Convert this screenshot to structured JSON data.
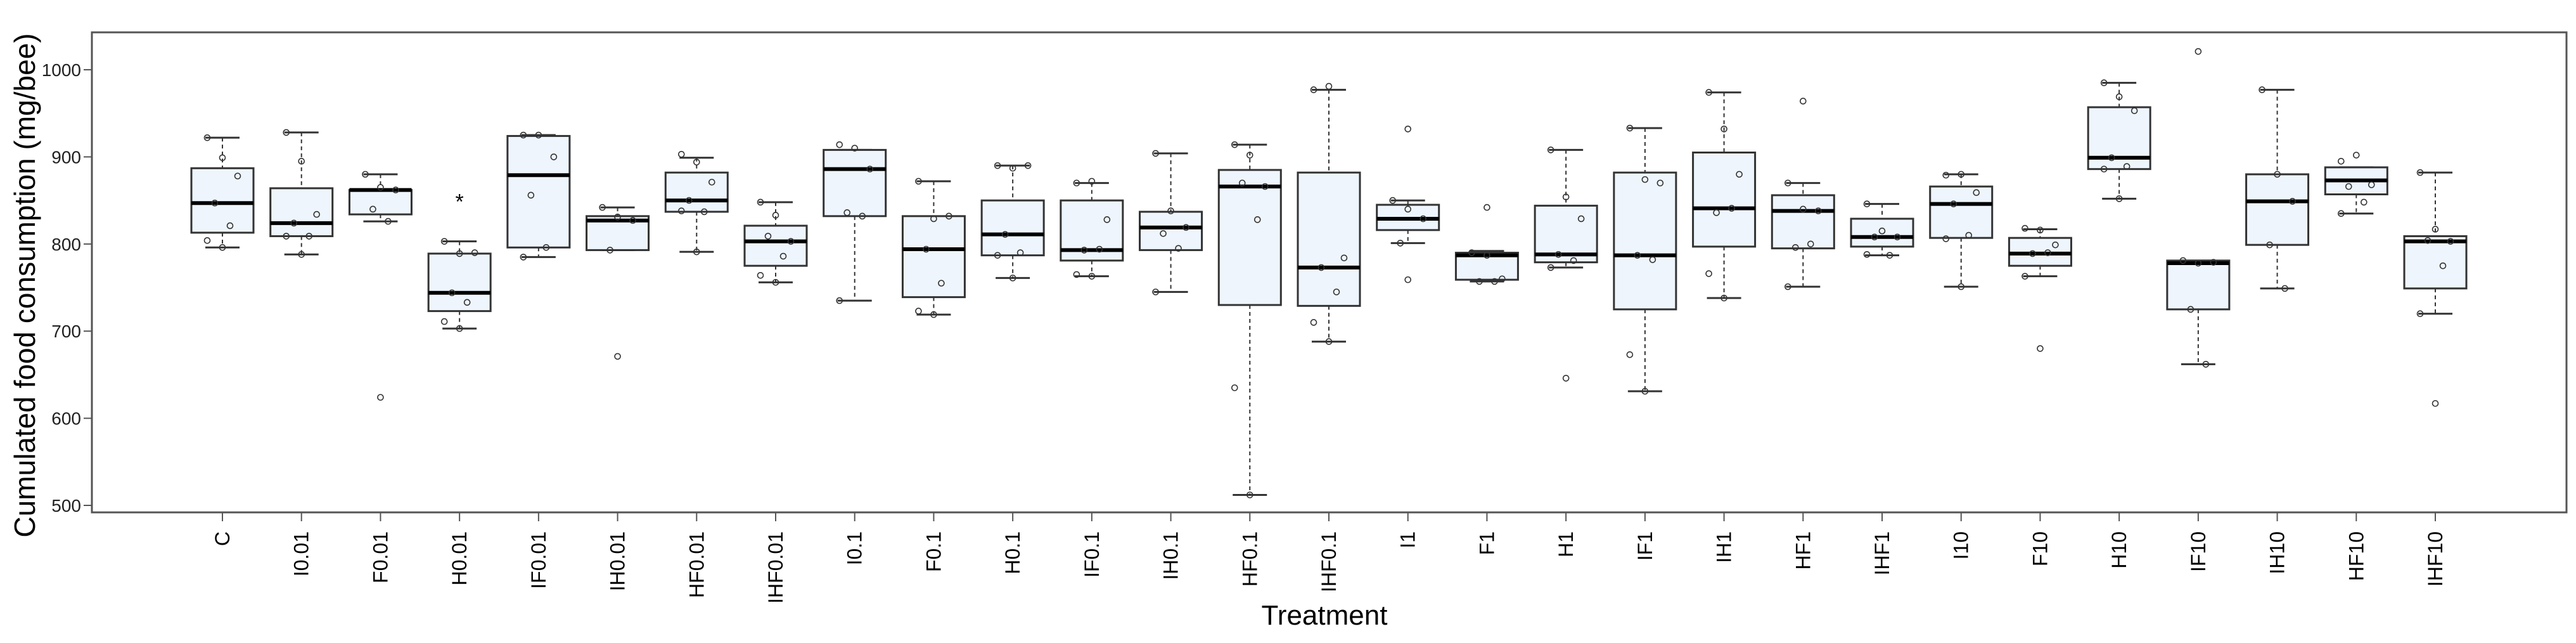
{
  "chart_data": {
    "type": "box",
    "xlabel": "Treatment",
    "ylabel": "Cumulated food consumption (mg/bee)",
    "ylim": [
      490,
      1040
    ],
    "yticks": [
      500,
      600,
      700,
      800,
      900,
      1000
    ],
    "grid": false,
    "box_fill": "#eef5fd",
    "categories": [
      "C",
      "I0.01",
      "F0.01",
      "H0.01",
      "IF0.01",
      "IH0.01",
      "HF0.01",
      "IHF0.01",
      "I0.1",
      "F0.1",
      "H0.1",
      "IF0.1",
      "IH0.1",
      "HF0.1",
      "IHF0.1",
      "I1",
      "F1",
      "H1",
      "IF1",
      "IH1",
      "HF1",
      "IHF1",
      "I10",
      "F10",
      "H10",
      "IF10",
      "IH10",
      "HF10",
      "IHF10"
    ],
    "boxes": [
      {
        "low": 796,
        "q1": 813,
        "median": 847,
        "q3": 887,
        "high": 922,
        "points": [
          922,
          899,
          878,
          847,
          821,
          804,
          796
        ],
        "outliers": []
      },
      {
        "low": 788,
        "q1": 809,
        "median": 824,
        "q3": 864,
        "high": 928,
        "points": [
          928,
          895,
          834,
          824,
          809,
          809,
          788
        ],
        "outliers": []
      },
      {
        "low": 826,
        "q1": 834,
        "median": 862,
        "q3": 862,
        "high": 880,
        "points": [
          880,
          865,
          862,
          840,
          826
        ],
        "outliers": [
          624
        ]
      },
      {
        "low": 703,
        "q1": 723,
        "median": 744,
        "q3": 789,
        "high": 803,
        "points": [
          803,
          789,
          790,
          744,
          733,
          711,
          703
        ],
        "outliers": [],
        "annotation": "*",
        "annotation_value": 852
      },
      {
        "low": 785,
        "q1": 796,
        "median": 879,
        "q3": 924,
        "high": 925,
        "points": [
          925,
          925,
          900,
          856,
          796,
          785
        ],
        "outliers": []
      },
      {
        "low": 793,
        "q1": 793,
        "median": 827,
        "q3": 832,
        "high": 842,
        "points": [
          842,
          831,
          827,
          793
        ],
        "outliers": [
          671
        ]
      },
      {
        "low": 791,
        "q1": 837,
        "median": 850,
        "q3": 882,
        "high": 899,
        "points": [
          903,
          894,
          871,
          850,
          837,
          838,
          791
        ],
        "outliers": []
      },
      {
        "low": 756,
        "q1": 775,
        "median": 803,
        "q3": 821,
        "high": 848,
        "points": [
          848,
          833,
          803,
          809,
          786,
          764,
          756
        ],
        "outliers": []
      },
      {
        "low": 735,
        "q1": 832,
        "median": 886,
        "q3": 908,
        "high": 908,
        "points": [
          914,
          910,
          886,
          836,
          832,
          735
        ],
        "outliers": []
      },
      {
        "low": 719,
        "q1": 739,
        "median": 794,
        "q3": 832,
        "high": 872,
        "points": [
          872,
          829,
          832,
          794,
          755,
          723,
          719
        ],
        "outliers": []
      },
      {
        "low": 761,
        "q1": 787,
        "median": 811,
        "q3": 850,
        "high": 890,
        "points": [
          890,
          887,
          890,
          811,
          790,
          787,
          761
        ],
        "outliers": []
      },
      {
        "low": 763,
        "q1": 781,
        "median": 793,
        "q3": 850,
        "high": 870,
        "points": [
          870,
          872,
          828,
          793,
          794,
          765,
          763
        ],
        "outliers": []
      },
      {
        "low": 745,
        "q1": 793,
        "median": 819,
        "q3": 837,
        "high": 904,
        "points": [
          904,
          838,
          819,
          812,
          795,
          745
        ],
        "outliers": []
      },
      {
        "low": 512,
        "q1": 730,
        "median": 866,
        "q3": 885,
        "high": 914,
        "points": [
          914,
          902,
          866,
          870,
          828,
          635,
          512
        ],
        "outliers": []
      },
      {
        "low": 688,
        "q1": 729,
        "median": 773,
        "q3": 882,
        "high": 977,
        "points": [
          977,
          981,
          784,
          773,
          745,
          710,
          688
        ],
        "outliers": []
      },
      {
        "low": 801,
        "q1": 816,
        "median": 829,
        "q3": 845,
        "high": 850,
        "points": [
          850,
          840,
          829,
          801
        ],
        "outliers": [
          932,
          759
        ]
      },
      {
        "low": 757,
        "q1": 759,
        "median": 787,
        "q3": 790,
        "high": 792,
        "points": [
          790,
          787,
          760,
          757,
          757
        ],
        "outliers": [
          842
        ]
      },
      {
        "low": 773,
        "q1": 779,
        "median": 788,
        "q3": 844,
        "high": 908,
        "points": [
          908,
          854,
          829,
          788,
          781,
          773
        ],
        "outliers": [
          646
        ]
      },
      {
        "low": 631,
        "q1": 725,
        "median": 787,
        "q3": 882,
        "high": 933,
        "points": [
          933,
          874,
          870,
          787,
          782,
          673,
          631
        ],
        "outliers": []
      },
      {
        "low": 738,
        "q1": 797,
        "median": 841,
        "q3": 905,
        "high": 974,
        "points": [
          974,
          932,
          880,
          836,
          841,
          766,
          738
        ],
        "outliers": []
      },
      {
        "low": 751,
        "q1": 795,
        "median": 838,
        "q3": 856,
        "high": 870,
        "points": [
          870,
          840,
          838,
          796,
          800,
          751
        ],
        "outliers": [
          964
        ]
      },
      {
        "low": 787,
        "q1": 797,
        "median": 808,
        "q3": 829,
        "high": 846,
        "points": [
          846,
          815,
          808,
          808,
          787,
          788
        ],
        "outliers": []
      },
      {
        "low": 751,
        "q1": 807,
        "median": 846,
        "q3": 866,
        "high": 880,
        "points": [
          879,
          880,
          859,
          846,
          810,
          806,
          751
        ],
        "outliers": []
      },
      {
        "low": 763,
        "q1": 775,
        "median": 789,
        "q3": 807,
        "high": 817,
        "points": [
          818,
          816,
          799,
          789,
          790,
          763
        ],
        "outliers": [
          680
        ]
      },
      {
        "low": 852,
        "q1": 886,
        "median": 899,
        "q3": 957,
        "high": 985,
        "points": [
          985,
          969,
          953,
          899,
          889,
          886,
          852
        ],
        "outliers": []
      },
      {
        "low": 662,
        "q1": 725,
        "median": 778,
        "q3": 781,
        "high": 781,
        "points": [
          781,
          778,
          779,
          725,
          662
        ],
        "outliers": [
          1021
        ]
      },
      {
        "low": 749,
        "q1": 799,
        "median": 849,
        "q3": 880,
        "high": 977,
        "points": [
          977,
          880,
          849,
          799,
          749
        ],
        "outliers": []
      },
      {
        "low": 835,
        "q1": 857,
        "median": 873,
        "q3": 888,
        "high": 888,
        "points": [
          895,
          902,
          868,
          866,
          848,
          835
        ],
        "outliers": []
      },
      {
        "low": 720,
        "q1": 749,
        "median": 803,
        "q3": 809,
        "high": 882,
        "points": [
          882,
          817,
          803,
          804,
          775,
          720
        ],
        "outliers": [
          617
        ]
      }
    ]
  }
}
